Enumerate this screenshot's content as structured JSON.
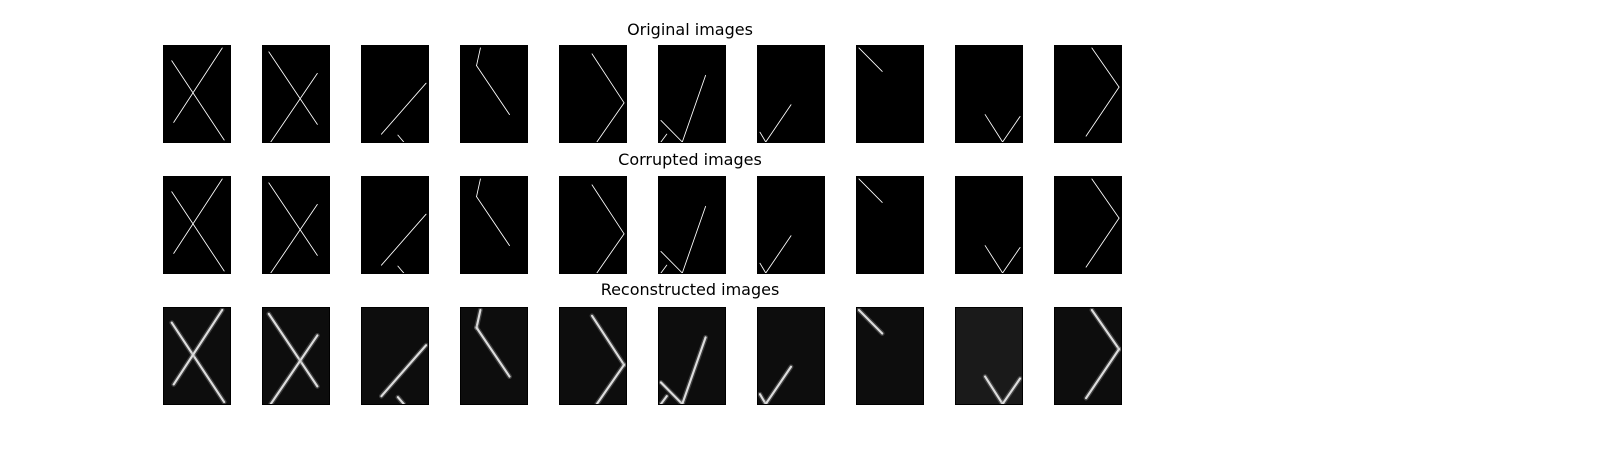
{
  "titles": {
    "original": "Original images",
    "corrupted": "Corrupted images",
    "reconstructed": "Reconstructed images"
  },
  "colors": {
    "figure_background": "#ffffff",
    "tile_background": "#000000",
    "stroke": "#ffffff"
  }
}
